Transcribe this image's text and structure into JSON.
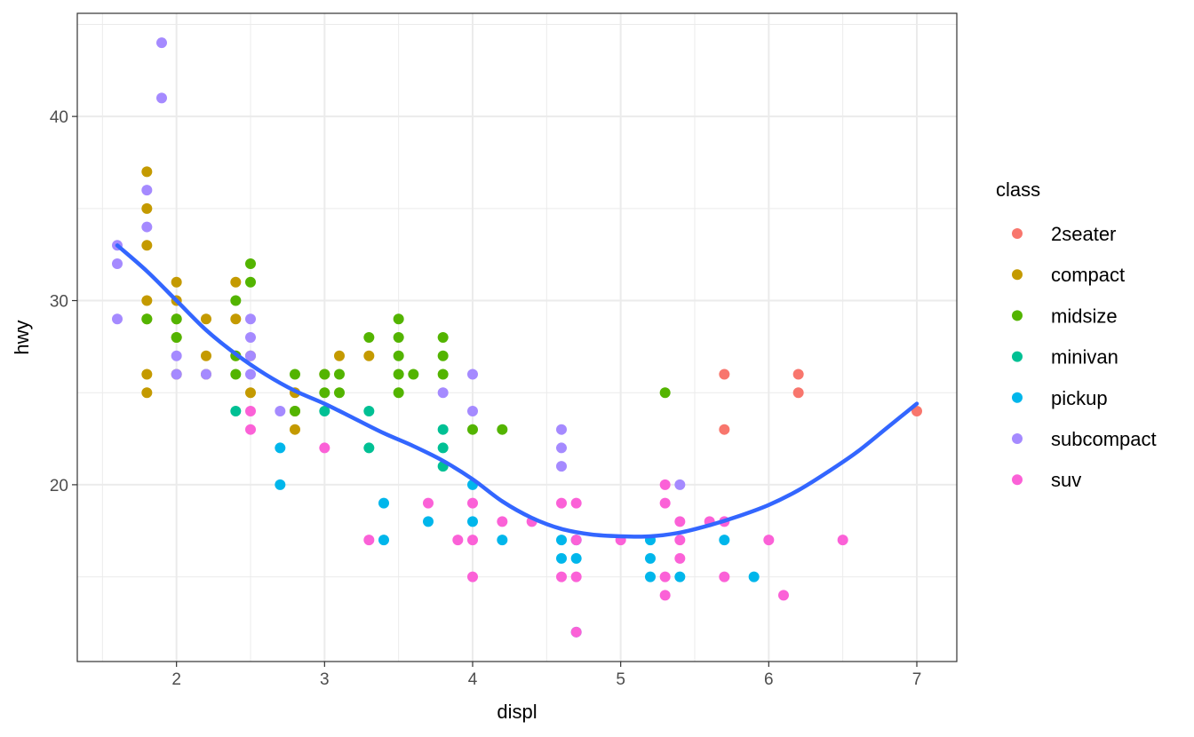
{
  "chart_data": {
    "type": "scatter",
    "xlabel": "displ",
    "ylabel": "hwy",
    "xlim": [
      1.33,
      7.27
    ],
    "ylim": [
      10.4,
      45.6
    ],
    "x_ticks": [
      2,
      3,
      4,
      5,
      6,
      7
    ],
    "y_ticks": [
      20,
      30,
      40
    ],
    "x_tick_labels": [
      "2",
      "3",
      "4",
      "5",
      "6",
      "7"
    ],
    "y_tick_labels": [
      "20",
      "30",
      "40"
    ],
    "grid": true,
    "theme": "bw",
    "legend": {
      "title": "class",
      "placement": "right",
      "items": [
        {
          "label": "2seater",
          "color": "#F8766D"
        },
        {
          "label": "compact",
          "color": "#C49A00"
        },
        {
          "label": "midsize",
          "color": "#53B400"
        },
        {
          "label": "minivan",
          "color": "#00C094"
        },
        {
          "label": "pickup",
          "color": "#00B6EB"
        },
        {
          "label": "subcompact",
          "color": "#A58AFF"
        },
        {
          "label": "suv",
          "color": "#FB61D7"
        }
      ]
    },
    "series": [
      {
        "name": "2seater",
        "color": "#F8766D",
        "points": [
          [
            5.7,
            26
          ],
          [
            5.7,
            23
          ],
          [
            6.2,
            26
          ],
          [
            6.2,
            25
          ],
          [
            7.0,
            24
          ]
        ]
      },
      {
        "name": "compact",
        "color": "#C49A00",
        "points": [
          [
            1.8,
            37
          ],
          [
            1.8,
            35
          ],
          [
            1.8,
            33
          ],
          [
            1.8,
            30
          ],
          [
            1.8,
            29
          ],
          [
            1.8,
            26
          ],
          [
            1.8,
            25
          ],
          [
            2.0,
            31
          ],
          [
            2.0,
            30
          ],
          [
            2.0,
            29
          ],
          [
            2.0,
            28
          ],
          [
            2.0,
            26
          ],
          [
            2.2,
            29
          ],
          [
            2.2,
            27
          ],
          [
            2.2,
            26
          ],
          [
            2.4,
            31
          ],
          [
            2.4,
            29
          ],
          [
            2.4,
            27
          ],
          [
            2.5,
            27
          ],
          [
            2.5,
            25
          ],
          [
            2.8,
            25
          ],
          [
            2.8,
            24
          ],
          [
            2.8,
            23
          ],
          [
            3.0,
            26
          ],
          [
            3.1,
            27
          ],
          [
            3.3,
            27
          ]
        ]
      },
      {
        "name": "midsize",
        "color": "#53B400",
        "points": [
          [
            1.8,
            29
          ],
          [
            2.0,
            29
          ],
          [
            2.0,
            28
          ],
          [
            2.4,
            30
          ],
          [
            2.4,
            27
          ],
          [
            2.4,
            26
          ],
          [
            2.5,
            32
          ],
          [
            2.5,
            31
          ],
          [
            2.8,
            26
          ],
          [
            2.8,
            24
          ],
          [
            3.0,
            26
          ],
          [
            3.0,
            25
          ],
          [
            3.1,
            26
          ],
          [
            3.1,
            25
          ],
          [
            3.3,
            28
          ],
          [
            3.5,
            29
          ],
          [
            3.5,
            28
          ],
          [
            3.5,
            27
          ],
          [
            3.5,
            26
          ],
          [
            3.5,
            25
          ],
          [
            3.6,
            26
          ],
          [
            3.8,
            28
          ],
          [
            3.8,
            27
          ],
          [
            3.8,
            26
          ],
          [
            4.0,
            23
          ],
          [
            4.2,
            23
          ],
          [
            5.3,
            25
          ]
        ]
      },
      {
        "name": "minivan",
        "color": "#00C094",
        "points": [
          [
            2.4,
            24
          ],
          [
            3.0,
            24
          ],
          [
            3.3,
            24
          ],
          [
            3.3,
            22
          ],
          [
            3.8,
            23
          ],
          [
            3.8,
            22
          ],
          [
            3.8,
            21
          ]
        ]
      },
      {
        "name": "pickup",
        "color": "#00B6EB",
        "points": [
          [
            2.7,
            22
          ],
          [
            2.7,
            20
          ],
          [
            3.4,
            19
          ],
          [
            3.4,
            17
          ],
          [
            3.7,
            18
          ],
          [
            4.0,
            20
          ],
          [
            4.0,
            18
          ],
          [
            4.2,
            17
          ],
          [
            4.6,
            17
          ],
          [
            4.6,
            16
          ],
          [
            4.7,
            17
          ],
          [
            4.7,
            16
          ],
          [
            4.7,
            12
          ],
          [
            5.2,
            17
          ],
          [
            5.2,
            16
          ],
          [
            5.2,
            15
          ],
          [
            5.4,
            15
          ],
          [
            5.7,
            17
          ],
          [
            5.9,
            15
          ]
        ]
      },
      {
        "name": "subcompact",
        "color": "#A58AFF",
        "points": [
          [
            1.6,
            33
          ],
          [
            1.6,
            32
          ],
          [
            1.6,
            29
          ],
          [
            1.8,
            36
          ],
          [
            1.8,
            34
          ],
          [
            1.9,
            44
          ],
          [
            1.9,
            41
          ],
          [
            2.0,
            27
          ],
          [
            2.0,
            26
          ],
          [
            2.2,
            26
          ],
          [
            2.5,
            29
          ],
          [
            2.5,
            28
          ],
          [
            2.5,
            27
          ],
          [
            2.5,
            26
          ],
          [
            2.7,
            24
          ],
          [
            3.8,
            25
          ],
          [
            4.0,
            26
          ],
          [
            4.0,
            24
          ],
          [
            4.6,
            23
          ],
          [
            4.6,
            22
          ],
          [
            4.6,
            21
          ],
          [
            5.4,
            20
          ]
        ]
      },
      {
        "name": "suv",
        "color": "#FB61D7",
        "points": [
          [
            2.5,
            24
          ],
          [
            2.5,
            23
          ],
          [
            3.0,
            22
          ],
          [
            3.3,
            17
          ],
          [
            3.7,
            19
          ],
          [
            3.9,
            17
          ],
          [
            4.0,
            19
          ],
          [
            4.0,
            17
          ],
          [
            4.0,
            15
          ],
          [
            4.2,
            18
          ],
          [
            4.4,
            18
          ],
          [
            4.6,
            19
          ],
          [
            4.6,
            15
          ],
          [
            4.7,
            19
          ],
          [
            4.7,
            17
          ],
          [
            4.7,
            15
          ],
          [
            4.7,
            12
          ],
          [
            5.0,
            17
          ],
          [
            5.3,
            20
          ],
          [
            5.3,
            19
          ],
          [
            5.3,
            15
          ],
          [
            5.3,
            14
          ],
          [
            5.4,
            18
          ],
          [
            5.4,
            17
          ],
          [
            5.4,
            16
          ],
          [
            5.6,
            18
          ],
          [
            5.7,
            18
          ],
          [
            5.7,
            15
          ],
          [
            6.0,
            17
          ],
          [
            6.1,
            14
          ],
          [
            6.5,
            17
          ]
        ]
      }
    ],
    "smooth": {
      "method": "loess",
      "color": "#3366FF",
      "points": [
        [
          1.6,
          33.0
        ],
        [
          1.8,
          31.6
        ],
        [
          2.0,
          30.0
        ],
        [
          2.2,
          28.4
        ],
        [
          2.4,
          27.1
        ],
        [
          2.6,
          26.0
        ],
        [
          2.8,
          25.1
        ],
        [
          3.0,
          24.4
        ],
        [
          3.2,
          23.6
        ],
        [
          3.4,
          22.8
        ],
        [
          3.6,
          22.1
        ],
        [
          3.8,
          21.3
        ],
        [
          4.0,
          20.3
        ],
        [
          4.2,
          19.1
        ],
        [
          4.4,
          18.2
        ],
        [
          4.6,
          17.6
        ],
        [
          4.8,
          17.3
        ],
        [
          5.0,
          17.2
        ],
        [
          5.2,
          17.2
        ],
        [
          5.4,
          17.4
        ],
        [
          5.6,
          17.8
        ],
        [
          5.8,
          18.3
        ],
        [
          6.0,
          18.9
        ],
        [
          6.2,
          19.7
        ],
        [
          6.4,
          20.7
        ],
        [
          6.6,
          21.8
        ],
        [
          6.8,
          23.1
        ],
        [
          7.0,
          24.4
        ]
      ]
    }
  }
}
